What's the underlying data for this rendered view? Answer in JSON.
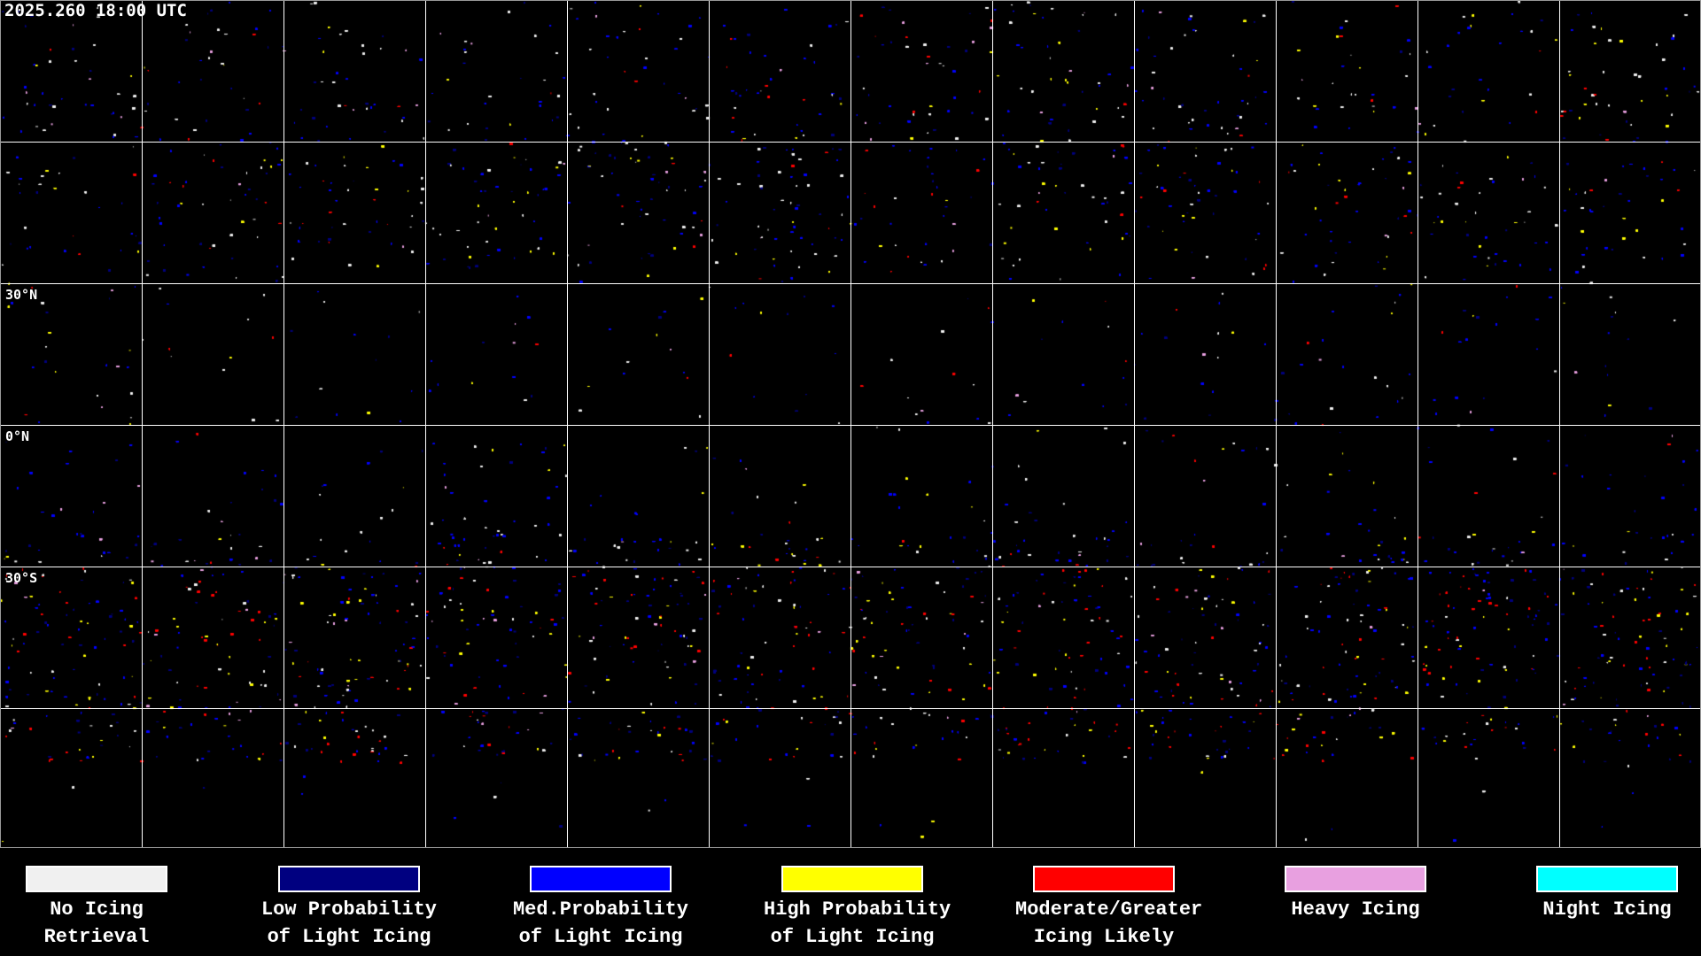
{
  "header": {
    "timestamp": "2025.260 18:00 UTC"
  },
  "map": {
    "latitude_labels": [
      "30°N",
      "0°N",
      "30°S"
    ]
  },
  "legend": [
    {
      "line1": "No Icing",
      "line2": "Retrieval",
      "color": "#f0f0f0"
    },
    {
      "line1": "Low Probability",
      "line2": "of Light Icing",
      "color": "#000080"
    },
    {
      "line1": "Med.Probability",
      "line2": "of Light Icing",
      "color": "#0000ff"
    },
    {
      "line1": "High Probability",
      "line2": "of Light Icing",
      "color": "#ffff00"
    },
    {
      "line1": "Moderate/Greater",
      "line2": "Icing Likely",
      "color": "#ff0000"
    },
    {
      "line1": "Heavy Icing",
      "line2": "",
      "color": "#e8a0e0"
    },
    {
      "line1": "Night Icing",
      "line2": "",
      "color": "#00ffff"
    }
  ]
}
